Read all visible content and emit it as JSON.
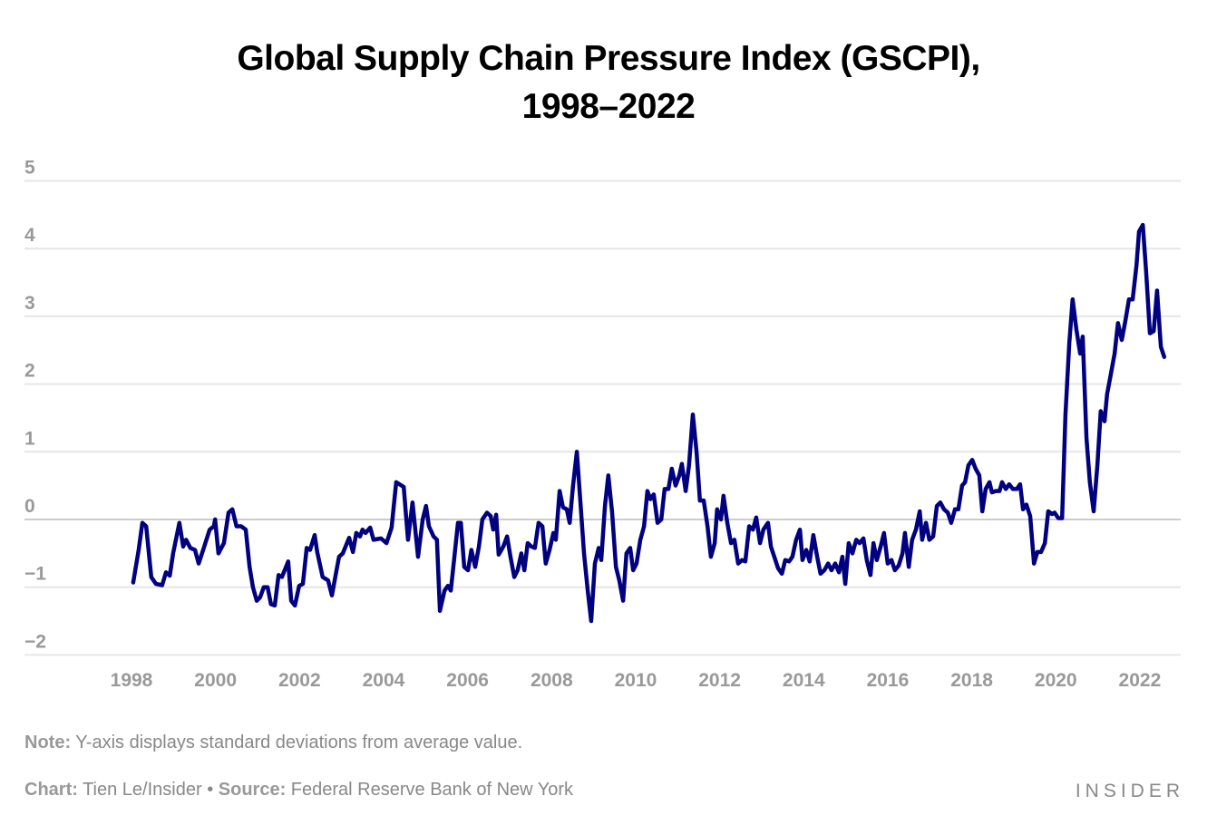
{
  "chart_data": {
    "type": "line",
    "title_line1": "Global Supply Chain Pressure Index (GSCPI),",
    "title_line2": "1998–2022",
    "xlabel": "",
    "ylabel": "",
    "xlim": [
      1997.8,
      2023.0
    ],
    "ylim": [
      -2,
      5
    ],
    "yticks": [
      "5",
      "4",
      "3",
      "2",
      "1",
      "0",
      "−1",
      "−2"
    ],
    "ytick_values": [
      5,
      4,
      3,
      2,
      1,
      0,
      -1,
      -2
    ],
    "xticks": [
      "1998",
      "2000",
      "2002",
      "2004",
      "2006",
      "2008",
      "2010",
      "2012",
      "2014",
      "2016",
      "2018",
      "2020",
      "2022"
    ],
    "xtick_values": [
      1998,
      2000,
      2002,
      2004,
      2006,
      2008,
      2010,
      2012,
      2014,
      2016,
      2018,
      2020,
      2022
    ],
    "grid": true,
    "line_color": "#000080",
    "grid_color": "#e6e6e6",
    "zero_line_color": "#cccccc",
    "x": [
      1998.04,
      1998.17,
      1998.26,
      1998.35,
      1998.47,
      1998.58,
      1998.73,
      1998.82,
      1998.91,
      1998.99,
      1999.14,
      1999.23,
      1999.3,
      1999.4,
      1999.51,
      1999.6,
      1999.73,
      1999.86,
      1999.96,
      1999.99,
      2000.07,
      2000.2,
      2000.31,
      2000.4,
      2000.5,
      2000.61,
      2000.72,
      2000.81,
      2000.89,
      2000.98,
      2001.06,
      2001.15,
      2001.24,
      2001.32,
      2001.41,
      2001.5,
      2001.58,
      2001.73,
      2001.8,
      2001.89,
      2001.99,
      2002.08,
      2002.17,
      2002.25,
      2002.36,
      2002.42,
      2002.55,
      2002.68,
      2002.77,
      2002.88,
      2002.94,
      2003.03,
      2003.18,
      2003.27,
      2003.35,
      2003.44,
      2003.5,
      2003.57,
      2003.68,
      2003.76,
      2003.94,
      2004.07,
      2004.19,
      2004.3,
      2004.48,
      2004.58,
      2004.69,
      2004.82,
      2004.93,
      2005.01,
      2005.08,
      2005.19,
      2005.27,
      2005.34,
      2005.45,
      2005.53,
      2005.6,
      2005.66,
      2005.77,
      2005.84,
      2005.92,
      2006.01,
      2006.09,
      2006.18,
      2006.27,
      2006.35,
      2006.46,
      2006.55,
      2006.61,
      2006.68,
      2006.74,
      2006.85,
      2006.94,
      2007.02,
      2007.11,
      2007.19,
      2007.28,
      2007.35,
      2007.43,
      2007.52,
      2007.6,
      2007.69,
      2007.78,
      2007.86,
      2007.95,
      2008.04,
      2008.1,
      2008.19,
      2008.27,
      2008.36,
      2008.43,
      2008.51,
      2008.6,
      2008.68,
      2008.77,
      2008.86,
      2008.94,
      2009.03,
      2009.12,
      2009.18,
      2009.27,
      2009.35,
      2009.44,
      2009.53,
      2009.61,
      2009.7,
      2009.78,
      2009.87,
      2009.94,
      2010.02,
      2010.11,
      2010.2,
      2010.28,
      2010.35,
      2010.43,
      2010.52,
      2010.61,
      2010.69,
      2010.78,
      2010.86,
      2010.95,
      2011.04,
      2011.1,
      2011.19,
      2011.27,
      2011.36,
      2011.45,
      2011.53,
      2011.62,
      2011.71,
      2011.79,
      2011.88,
      2011.94,
      2012.03,
      2012.09,
      2012.18,
      2012.27,
      2012.35,
      2012.44,
      2012.53,
      2012.61,
      2012.7,
      2012.79,
      2012.87,
      2012.96,
      2013.04,
      2013.15,
      2013.22,
      2013.3,
      2013.39,
      2013.48,
      2013.56,
      2013.65,
      2013.73,
      2013.82,
      2013.91,
      2013.97,
      2014.06,
      2014.14,
      2014.23,
      2014.32,
      2014.4,
      2014.49,
      2014.58,
      2014.66,
      2014.75,
      2014.84,
      2014.92,
      2014.99,
      2015.07,
      2015.16,
      2015.25,
      2015.33,
      2015.42,
      2015.5,
      2015.59,
      2015.66,
      2015.74,
      2015.83,
      2015.91,
      2016.0,
      2016.09,
      2016.17,
      2016.26,
      2016.35,
      2016.41,
      2016.5,
      2016.58,
      2016.67,
      2016.76,
      2016.82,
      2016.91,
      2016.99,
      2017.08,
      2017.17,
      2017.25,
      2017.34,
      2017.43,
      2017.51,
      2017.6,
      2017.68,
      2017.77,
      2017.84,
      2017.92,
      2018.01,
      2018.09,
      2018.18,
      2018.25,
      2018.33,
      2018.42,
      2018.48,
      2018.57,
      2018.66,
      2018.72,
      2018.81,
      2018.89,
      2018.98,
      2019.07,
      2019.15,
      2019.22,
      2019.3,
      2019.39,
      2019.48,
      2019.56,
      2019.65,
      2019.74,
      2019.82,
      2019.91,
      2019.97,
      2020.06,
      2020.15,
      2020.23,
      2020.32,
      2020.4,
      2020.49,
      2020.58,
      2020.64,
      2020.73,
      2020.81,
      2020.9,
      2020.99,
      2021.07,
      2021.16,
      2021.22,
      2021.31,
      2021.4,
      2021.48,
      2021.57,
      2021.66,
      2021.74,
      2021.83,
      2021.92,
      2021.98,
      2022.07,
      2022.15,
      2022.24,
      2022.33,
      2022.41,
      2022.5,
      2022.58
    ],
    "y": [
      -0.93,
      -0.45,
      -0.05,
      -0.1,
      -0.85,
      -0.95,
      -0.97,
      -0.78,
      -0.83,
      -0.5,
      -0.05,
      -0.4,
      -0.3,
      -0.42,
      -0.45,
      -0.65,
      -0.4,
      -0.15,
      -0.1,
      0.0,
      -0.5,
      -0.35,
      0.1,
      0.15,
      -0.1,
      -0.1,
      -0.15,
      -0.7,
      -1.0,
      -1.2,
      -1.15,
      -1.0,
      -1.0,
      -1.25,
      -1.27,
      -0.82,
      -0.85,
      -0.62,
      -1.2,
      -1.27,
      -0.98,
      -0.95,
      -0.42,
      -0.45,
      -0.23,
      -0.48,
      -0.85,
      -0.9,
      -1.12,
      -0.75,
      -0.55,
      -0.5,
      -0.27,
      -0.48,
      -0.2,
      -0.25,
      -0.15,
      -0.2,
      -0.12,
      -0.3,
      -0.28,
      -0.35,
      -0.12,
      0.55,
      0.48,
      -0.3,
      0.25,
      -0.55,
      0.0,
      0.2,
      -0.1,
      -0.25,
      -0.3,
      -1.35,
      -1.05,
      -0.98,
      -1.05,
      -0.7,
      -0.05,
      -0.05,
      -0.7,
      -0.75,
      -0.45,
      -0.7,
      -0.4,
      0.0,
      0.1,
      0.05,
      -0.15,
      0.07,
      -0.52,
      -0.4,
      -0.25,
      -0.55,
      -0.85,
      -0.75,
      -0.5,
      -0.75,
      -0.35,
      -0.4,
      -0.42,
      -0.05,
      -0.1,
      -0.65,
      -0.45,
      -0.2,
      -0.3,
      0.42,
      0.18,
      0.15,
      -0.05,
      0.5,
      1.0,
      0.3,
      -0.5,
      -1.05,
      -1.5,
      -0.65,
      -0.42,
      -0.6,
      0.2,
      0.65,
      0.1,
      -0.7,
      -0.9,
      -1.2,
      -0.5,
      -0.42,
      -0.75,
      -0.65,
      -0.3,
      -0.1,
      0.42,
      0.3,
      0.37,
      -0.05,
      0.0,
      0.45,
      0.45,
      0.75,
      0.5,
      0.65,
      0.82,
      0.42,
      0.8,
      1.55,
      1.0,
      0.28,
      0.28,
      -0.1,
      -0.55,
      -0.35,
      0.15,
      0.0,
      0.35,
      -0.05,
      -0.35,
      -0.3,
      -0.65,
      -0.6,
      -0.62,
      -0.1,
      -0.15,
      0.03,
      -0.35,
      -0.15,
      -0.05,
      -0.4,
      -0.55,
      -0.72,
      -0.8,
      -0.6,
      -0.62,
      -0.55,
      -0.3,
      -0.15,
      -0.6,
      -0.45,
      -0.62,
      -0.23,
      -0.55,
      -0.8,
      -0.75,
      -0.65,
      -0.75,
      -0.65,
      -0.78,
      -0.55,
      -0.95,
      -0.35,
      -0.5,
      -0.3,
      -0.35,
      -0.28,
      -0.6,
      -0.82,
      -0.35,
      -0.6,
      -0.4,
      -0.2,
      -0.65,
      -0.6,
      -0.75,
      -0.68,
      -0.5,
      -0.2,
      -0.7,
      -0.3,
      -0.15,
      0.12,
      -0.3,
      -0.05,
      -0.3,
      -0.25,
      0.2,
      0.25,
      0.15,
      0.1,
      -0.05,
      0.15,
      0.15,
      0.5,
      0.55,
      0.8,
      0.88,
      0.75,
      0.65,
      0.12,
      0.45,
      0.55,
      0.4,
      0.42,
      0.42,
      0.55,
      0.45,
      0.52,
      0.45,
      0.45,
      0.52,
      0.15,
      0.22,
      0.05,
      -0.65,
      -0.48,
      -0.48,
      -0.35,
      0.12,
      0.08,
      0.1,
      0.02,
      0.02,
      1.55,
      2.6,
      3.25,
      2.8,
      2.45,
      2.7,
      1.2,
      0.55,
      0.12,
      0.8,
      1.6,
      1.45,
      1.85,
      2.15,
      2.45,
      2.9,
      2.65,
      2.95,
      3.25,
      3.25,
      3.75,
      4.25,
      4.35,
      3.65,
      2.75,
      2.78,
      3.38,
      2.55,
      2.4
    ]
  },
  "note": {
    "label": "Note:",
    "text": " Y-axis displays standard deviations from average value."
  },
  "footer": {
    "chart_label": "Chart:",
    "chart_text": " Tien Le/Insider • ",
    "source_label": "Source:",
    "source_text": " Federal Reserve Bank of New York"
  },
  "logo": "INSIDER"
}
